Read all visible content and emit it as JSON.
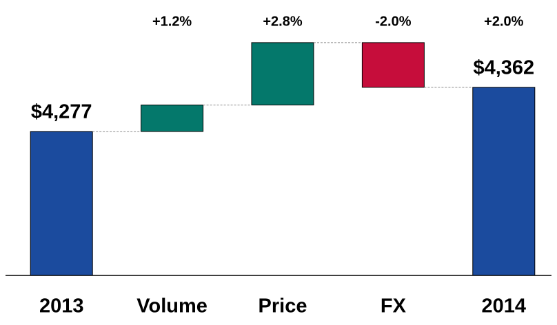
{
  "chart_data": {
    "type": "waterfall",
    "categories": [
      "2013",
      "Volume",
      "Price",
      "FX",
      "2014"
    ],
    "measure": [
      "total",
      "relative",
      "relative",
      "relative",
      "total"
    ],
    "values": [
      4277,
      51,
      120,
      -86,
      4362
    ],
    "value_labels": [
      "$4,277",
      null,
      null,
      null,
      "$4,362"
    ],
    "change_labels": [
      null,
      "+1.2%",
      "+2.8%",
      "-2.0%",
      "+2.0%"
    ],
    "colors": {
      "total": "#1b4b9e",
      "increase": "#04786b",
      "decrease": "#c60d3b"
    },
    "ylim": [
      4000,
      4530
    ]
  }
}
